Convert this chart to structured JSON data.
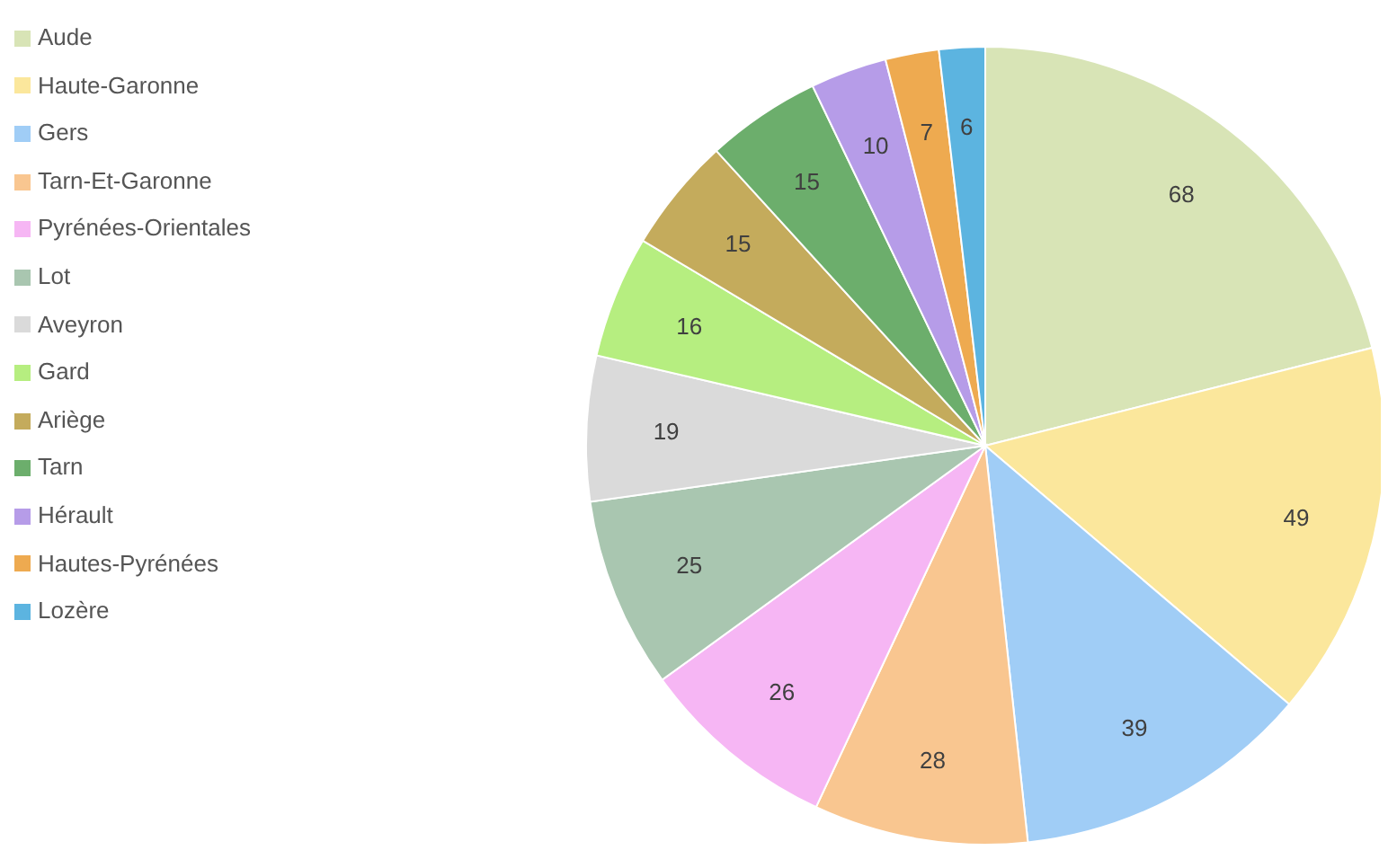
{
  "chart_data": {
    "type": "pie",
    "categories": [
      "Aude",
      "Haute-Garonne",
      "Gers",
      "Tarn-Et-Garonne",
      "Pyrénées-Orientales",
      "Lot",
      "Aveyron",
      "Gard",
      "Ariège",
      "Tarn",
      "Hérault",
      "Hautes-Pyrénées",
      "Lozère"
    ],
    "values": [
      68,
      49,
      39,
      28,
      26,
      25,
      19,
      16,
      15,
      15,
      10,
      7,
      6
    ],
    "colors": [
      "#d8e4b6",
      "#fbe79c",
      "#a0cdf6",
      "#f9c690",
      "#f6b6f4",
      "#a9c6b0",
      "#dadada",
      "#b6ee80",
      "#c4ab5c",
      "#6cae6c",
      "#b69ce8",
      "#eeaa50",
      "#5cb4e0"
    ],
    "data_labels": true,
    "legend": "left"
  }
}
